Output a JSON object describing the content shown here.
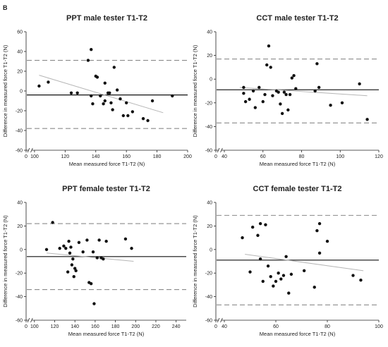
{
  "figure": {
    "panel_letter": "B"
  },
  "chart_data": [
    {
      "type": "scatter",
      "title": "PPT male tester T1-T2",
      "xlabel": "Mean measured force T1-T2 (N)",
      "ylabel": "Difference in measured force T1-T2 (N)",
      "xlim": [
        0,
        200
      ],
      "x_axis_break": true,
      "xticks": [
        0,
        100,
        120,
        140,
        160,
        180,
        200
      ],
      "ylim": [
        -60,
        60
      ],
      "yticks": [
        -60,
        -40,
        -20,
        0,
        20,
        40,
        60
      ],
      "mean_difference": -4,
      "limits_of_agreement": [
        31,
        -38
      ],
      "regression_line": {
        "x": [
          103,
          184
        ],
        "y": [
          16,
          -22
        ]
      },
      "points": [
        {
          "x": 103,
          "y": 5
        },
        {
          "x": 109,
          "y": 9
        },
        {
          "x": 124,
          "y": -2
        },
        {
          "x": 128,
          "y": -2
        },
        {
          "x": 135,
          "y": 31
        },
        {
          "x": 137,
          "y": 42
        },
        {
          "x": 137,
          "y": -5
        },
        {
          "x": 138,
          "y": -13
        },
        {
          "x": 140,
          "y": 15
        },
        {
          "x": 141,
          "y": 14
        },
        {
          "x": 143,
          "y": -5
        },
        {
          "x": 145,
          "y": -13
        },
        {
          "x": 146,
          "y": -10
        },
        {
          "x": 146,
          "y": 8
        },
        {
          "x": 148,
          "y": -2
        },
        {
          "x": 149,
          "y": -2
        },
        {
          "x": 150,
          "y": -12
        },
        {
          "x": 151,
          "y": -19
        },
        {
          "x": 152,
          "y": 24
        },
        {
          "x": 154,
          "y": 1
        },
        {
          "x": 156,
          "y": -8
        },
        {
          "x": 158,
          "y": -25
        },
        {
          "x": 160,
          "y": -12
        },
        {
          "x": 161,
          "y": -25
        },
        {
          "x": 164,
          "y": -21
        },
        {
          "x": 171,
          "y": -28
        },
        {
          "x": 174,
          "y": -30
        },
        {
          "x": 177,
          "y": -10
        },
        {
          "x": 190,
          "y": -5
        }
      ]
    },
    {
      "type": "scatter",
      "title": "CCT male tester T1-T2",
      "xlabel": "Mean measured force T1-T2 (N)",
      "ylabel": "Difference in measured force T1-T2 (N)",
      "xlim": [
        0,
        120
      ],
      "x_axis_break": true,
      "xticks": [
        0,
        40,
        60,
        80,
        100,
        120
      ],
      "ylim": [
        -60,
        40
      ],
      "yticks": [
        -60,
        -40,
        -20,
        0,
        20,
        40
      ],
      "mean_difference": -9,
      "limits_of_agreement": [
        17,
        -37
      ],
      "regression_line": {
        "x": [
          48,
          114
        ],
        "y": [
          -7,
          -14
        ]
      },
      "points": [
        {
          "x": 50,
          "y": -7
        },
        {
          "x": 50,
          "y": -12
        },
        {
          "x": 51,
          "y": -19
        },
        {
          "x": 53,
          "y": -17
        },
        {
          "x": 55,
          "y": -10
        },
        {
          "x": 56,
          "y": -24
        },
        {
          "x": 58,
          "y": -7
        },
        {
          "x": 60,
          "y": -19
        },
        {
          "x": 61,
          "y": -13
        },
        {
          "x": 62,
          "y": 12
        },
        {
          "x": 63,
          "y": 28
        },
        {
          "x": 64,
          "y": 10
        },
        {
          "x": 65,
          "y": -14
        },
        {
          "x": 67,
          "y": -10
        },
        {
          "x": 68,
          "y": -11
        },
        {
          "x": 69,
          "y": -21
        },
        {
          "x": 70,
          "y": -29
        },
        {
          "x": 71,
          "y": -11
        },
        {
          "x": 72,
          "y": -13
        },
        {
          "x": 73,
          "y": -26
        },
        {
          "x": 74,
          "y": -13
        },
        {
          "x": 75,
          "y": 1
        },
        {
          "x": 76,
          "y": 3
        },
        {
          "x": 77,
          "y": -8
        },
        {
          "x": 87,
          "y": -10
        },
        {
          "x": 88,
          "y": 13
        },
        {
          "x": 89,
          "y": -7
        },
        {
          "x": 95,
          "y": -22
        },
        {
          "x": 101,
          "y": -20
        },
        {
          "x": 110,
          "y": -4
        },
        {
          "x": 114,
          "y": -34
        }
      ]
    },
    {
      "type": "scatter",
      "title": "PPT female tester T1-T2",
      "xlabel": "Mean measured force T1-T2 (N)",
      "ylabel": "Difference in measured force T1-T2 (N)",
      "xlim": [
        0,
        250
      ],
      "x_axis_break": true,
      "xticks": [
        0,
        100,
        120,
        140,
        160,
        180,
        200,
        220,
        240
      ],
      "ylim": [
        -60,
        40
      ],
      "yticks": [
        -60,
        -40,
        -20,
        0,
        20,
        40
      ],
      "mean_difference": -6,
      "limits_of_agreement": [
        22,
        -34
      ],
      "regression_line": {
        "x": [
          112,
          198
        ],
        "y": [
          -3,
          -10
        ]
      },
      "points": [
        {
          "x": 112,
          "y": 0
        },
        {
          "x": 118,
          "y": 23
        },
        {
          "x": 125,
          "y": 1
        },
        {
          "x": 129,
          "y": 3
        },
        {
          "x": 131,
          "y": 1
        },
        {
          "x": 133,
          "y": -19
        },
        {
          "x": 134,
          "y": 7
        },
        {
          "x": 135,
          "y": -3
        },
        {
          "x": 136,
          "y": 2
        },
        {
          "x": 137,
          "y": -13
        },
        {
          "x": 138,
          "y": -8
        },
        {
          "x": 139,
          "y": -23
        },
        {
          "x": 140,
          "y": -16
        },
        {
          "x": 141,
          "y": -18
        },
        {
          "x": 144,
          "y": 6
        },
        {
          "x": 148,
          "y": -2
        },
        {
          "x": 152,
          "y": 8
        },
        {
          "x": 154,
          "y": -28
        },
        {
          "x": 156,
          "y": -29
        },
        {
          "x": 158,
          "y": -2
        },
        {
          "x": 159,
          "y": -46
        },
        {
          "x": 162,
          "y": -7
        },
        {
          "x": 164,
          "y": 8
        },
        {
          "x": 166,
          "y": -7
        },
        {
          "x": 168,
          "y": -8
        },
        {
          "x": 171,
          "y": 7
        },
        {
          "x": 190,
          "y": 9
        },
        {
          "x": 196,
          "y": 1
        }
      ]
    },
    {
      "type": "scatter",
      "title": "CCT female tester T1-T2",
      "xlabel": "Mean measured force T1-T2 (N)",
      "ylabel": "Difference in measured force T1-T2 (N)",
      "xlim": [
        0,
        100
      ],
      "x_axis_break": true,
      "xticks": [
        0,
        40,
        60,
        80,
        100
      ],
      "ylim": [
        -60,
        40
      ],
      "yticks": [
        -60,
        -40,
        -20,
        0,
        20,
        40
      ],
      "mean_difference": -9,
      "limits_of_agreement": [
        29,
        -47
      ],
      "regression_line": {
        "x": [
          48,
          94
        ],
        "y": [
          -4,
          -18
        ]
      },
      "points": [
        {
          "x": 47,
          "y": 10
        },
        {
          "x": 50,
          "y": -19
        },
        {
          "x": 51,
          "y": 19
        },
        {
          "x": 53,
          "y": 12
        },
        {
          "x": 54,
          "y": -8
        },
        {
          "x": 54,
          "y": 22
        },
        {
          "x": 55,
          "y": -27
        },
        {
          "x": 56,
          "y": 21
        },
        {
          "x": 57,
          "y": -14
        },
        {
          "x": 58,
          "y": -23
        },
        {
          "x": 59,
          "y": -31
        },
        {
          "x": 60,
          "y": -27
        },
        {
          "x": 61,
          "y": -20
        },
        {
          "x": 62,
          "y": -25
        },
        {
          "x": 63,
          "y": -22
        },
        {
          "x": 64,
          "y": -6
        },
        {
          "x": 65,
          "y": -37
        },
        {
          "x": 66,
          "y": -21
        },
        {
          "x": 71,
          "y": -18
        },
        {
          "x": 75,
          "y": -32
        },
        {
          "x": 76,
          "y": 16
        },
        {
          "x": 77,
          "y": 22
        },
        {
          "x": 77,
          "y": -3
        },
        {
          "x": 80,
          "y": 7
        },
        {
          "x": 90,
          "y": -22
        },
        {
          "x": 93,
          "y": -26
        }
      ]
    }
  ]
}
